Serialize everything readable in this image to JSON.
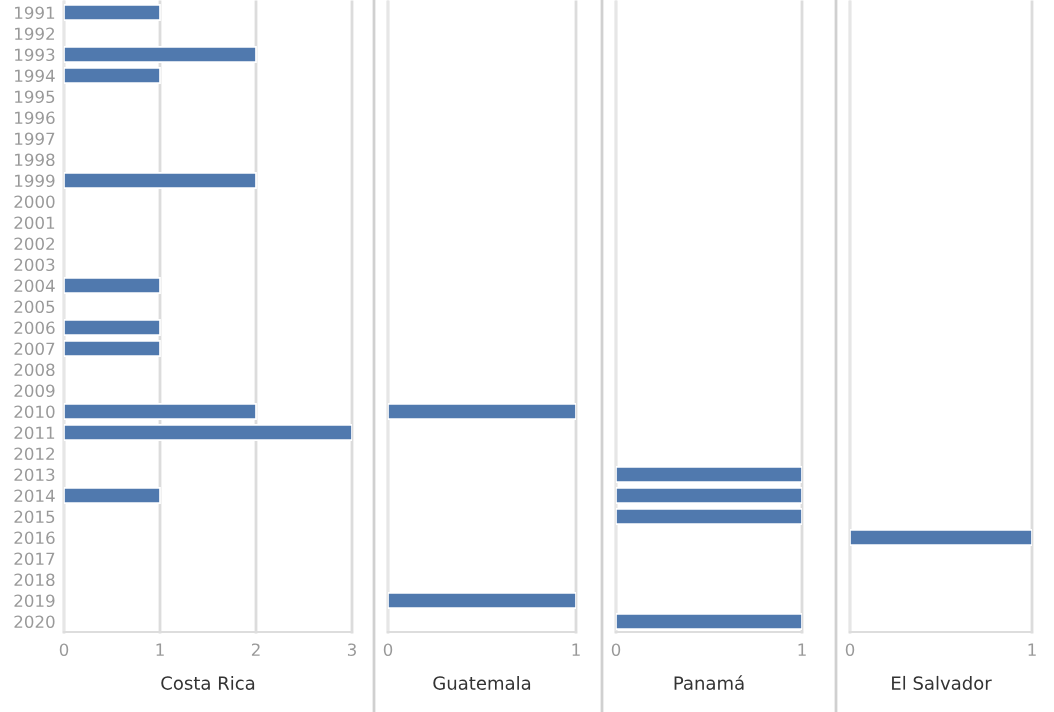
{
  "chart_data": [
    {
      "type": "bar",
      "orientation": "horizontal",
      "xlabel": "Costa Rica",
      "categories": [
        "1991",
        "1992",
        "1993",
        "1994",
        "1995",
        "1996",
        "1997",
        "1998",
        "1999",
        "2000",
        "2001",
        "2002",
        "2003",
        "2004",
        "2005",
        "2006",
        "2007",
        "2008",
        "2009",
        "2010",
        "2011",
        "2012",
        "2013",
        "2014",
        "2015",
        "2016",
        "2017",
        "2018",
        "2019",
        "2020"
      ],
      "values": [
        1,
        null,
        2,
        1,
        null,
        null,
        null,
        null,
        2,
        null,
        null,
        null,
        null,
        1,
        null,
        1,
        1,
        null,
        null,
        2,
        3,
        null,
        null,
        1,
        null,
        null,
        null,
        null,
        null,
        null
      ],
      "color": "#5079ae",
      "xlim": [
        0,
        3
      ],
      "xticks": [
        0,
        1,
        2,
        3
      ],
      "grid": "x"
    },
    {
      "type": "bar",
      "orientation": "horizontal",
      "xlabel": "Guatemala",
      "categories": [
        "1991",
        "1992",
        "1993",
        "1994",
        "1995",
        "1996",
        "1997",
        "1998",
        "1999",
        "2000",
        "2001",
        "2002",
        "2003",
        "2004",
        "2005",
        "2006",
        "2007",
        "2008",
        "2009",
        "2010",
        "2011",
        "2012",
        "2013",
        "2014",
        "2015",
        "2016",
        "2017",
        "2018",
        "2019",
        "2020"
      ],
      "values": [
        null,
        null,
        null,
        null,
        null,
        null,
        null,
        null,
        null,
        null,
        null,
        null,
        null,
        null,
        null,
        null,
        null,
        null,
        null,
        1,
        null,
        null,
        null,
        null,
        null,
        null,
        null,
        null,
        1,
        null
      ],
      "color": "#5079ae",
      "xlim": [
        0,
        1
      ],
      "xticks": [
        0,
        1
      ],
      "grid": "x",
      "tick_labels": "x"
    },
    {
      "type": "bar",
      "orientation": "horizontal",
      "xlabel": "Panamá",
      "categories": [
        "1991",
        "1992",
        "1993",
        "1994",
        "1995",
        "1996",
        "1997",
        "1998",
        "1999",
        "2000",
        "2001",
        "2002",
        "2003",
        "2004",
        "2005",
        "2006",
        "2007",
        "2008",
        "2009",
        "2010",
        "2011",
        "2012",
        "2013",
        "2014",
        "2015",
        "2016",
        "2017",
        "2018",
        "2019",
        "2020"
      ],
      "values": [
        null,
        null,
        null,
        null,
        null,
        null,
        null,
        null,
        null,
        null,
        null,
        null,
        null,
        null,
        null,
        null,
        null,
        null,
        null,
        null,
        null,
        null,
        1,
        1,
        1,
        null,
        null,
        null,
        null,
        1
      ],
      "color": "#5079ae",
      "xlim": [
        0,
        1
      ],
      "xticks": [
        0,
        1
      ],
      "grid": "x",
      "tick_labels": "x"
    },
    {
      "type": "bar",
      "orientation": "horizontal",
      "xlabel": "El Salvador",
      "categories": [
        "1991",
        "1992",
        "1993",
        "1994",
        "1995",
        "1996",
        "1997",
        "1998",
        "1999",
        "2000",
        "2001",
        "2002",
        "2003",
        "2004",
        "2005",
        "2006",
        "2007",
        "2008",
        "2009",
        "2010",
        "2011",
        "2012",
        "2013",
        "2014",
        "2015",
        "2016",
        "2017",
        "2018",
        "2019",
        "2020"
      ],
      "values": [
        null,
        null,
        null,
        null,
        null,
        null,
        null,
        null,
        null,
        null,
        null,
        null,
        null,
        null,
        null,
        null,
        null,
        null,
        null,
        null,
        null,
        null,
        null,
        null,
        null,
        1,
        null,
        null,
        null,
        null
      ],
      "color": "#5079ae",
      "xlim": [
        0,
        1
      ],
      "xticks": [
        0,
        1
      ],
      "grid": "x",
      "tick_labels": "x"
    }
  ]
}
